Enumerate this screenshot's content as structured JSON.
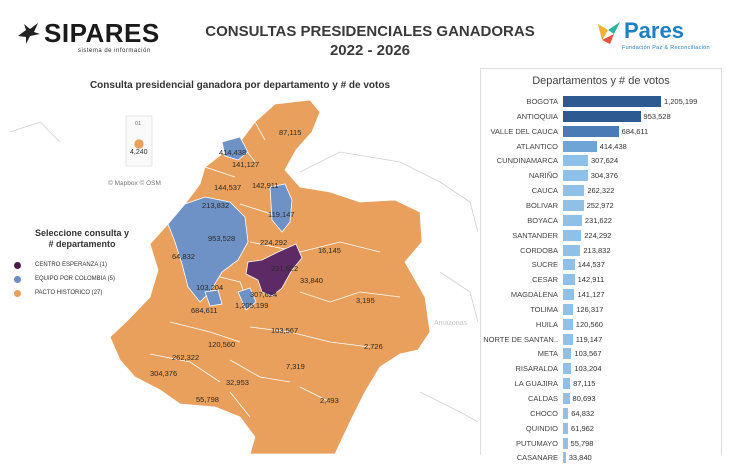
{
  "header": {
    "brand_left": "SIPARES",
    "brand_left_tag": "sistema de información",
    "title_line1": "CONSULTAS PRESIDENCIALES GANADORAS",
    "title_line2": "2022 - 2026",
    "brand_right": "Pares",
    "brand_right_tag": "Fundación Paz & Reconciliación"
  },
  "map": {
    "title": "Consulta presidencial ganadora por departamento y # de votos",
    "attribution": "© Mapbox  © OSM",
    "ocean_label": "Amazonas",
    "island_label": "01",
    "island_value": "4,240",
    "labels": [
      "87,115",
      "414,438",
      "141,127",
      "144,537",
      "142,911",
      "213,832",
      "119,147",
      "953,528",
      "224,292",
      "16,145",
      "64,832",
      "231,622",
      "33,840",
      "103,204",
      "307,624",
      "3,195",
      "684,611",
      "1,205,199",
      "103,567",
      "120,560",
      "2,726",
      "262,322",
      "7,319",
      "304,376",
      "32,953",
      "55,798",
      "2,493"
    ]
  },
  "legend": {
    "title_line1": "Seleccione consulta y",
    "title_line2": "# departamento",
    "items": [
      {
        "label": "CENTRO ESPERANZA  (1)",
        "color": "#4a1a4a"
      },
      {
        "label": "EQUIPO POR COLOMBIA  (5)",
        "color": "#6b8cc4"
      },
      {
        "label": "PACTO HISTORICO  (27)",
        "color": "#e8a05c"
      }
    ]
  },
  "colors": {
    "pacto": "#e8a05c",
    "equipo": "#6f92c6",
    "centro": "#5e2a66",
    "bar_dark": "#2e5a92",
    "bar_mid": "#4a7bb5",
    "bar_light": "#8ec0e8"
  },
  "chart_data": {
    "type": "bar",
    "orientation": "horizontal",
    "title": "Departamentos y # de votos",
    "categories": [
      "BOGOTA",
      "ANTIOQUIA",
      "VALLE DEL CAUCA",
      "ATLANTICO",
      "CUNDINAMARCA",
      "NARIÑO",
      "CAUCA",
      "BOLIVAR",
      "BOYACA",
      "SANTANDER",
      "CORDOBA",
      "SUCRE",
      "CESAR",
      "MAGDALENA",
      "TOLIMA",
      "HUILA",
      "NORTE DE SANTAN..",
      "META",
      "RISARALDA",
      "LA GUAJIRA",
      "CALDAS",
      "CHOCO",
      "QUINDIO",
      "PUTUMAYO",
      "CASANARE"
    ],
    "values": [
      1205199,
      953528,
      684611,
      414438,
      307624,
      304376,
      262322,
      252972,
      231622,
      224292,
      213832,
      144537,
      142911,
      141127,
      126317,
      120560,
      119147,
      103567,
      103204,
      87115,
      80693,
      64832,
      61962,
      55798,
      33840
    ],
    "value_labels": [
      "1,205,199",
      "953,528",
      "684,611",
      "414,438",
      "307,624",
      "304,376",
      "262,322",
      "252,972",
      "231,622",
      "224,292",
      "213,832",
      "144,537",
      "142,911",
      "141,127",
      "126,317",
      "120,560",
      "119,147",
      "103,567",
      "103,204",
      "87,115",
      "80,693",
      "64,832",
      "61,962",
      "55,798",
      "33,840"
    ],
    "xlim": [
      0,
      1205199
    ]
  }
}
